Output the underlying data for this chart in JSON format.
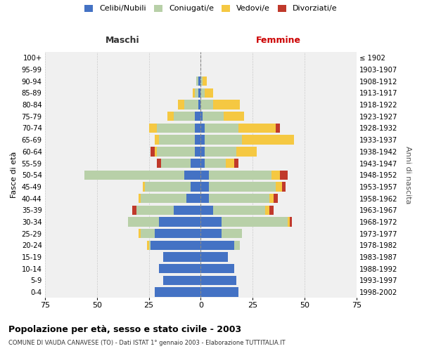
{
  "age_groups_bottom_to_top": [
    "0-4",
    "5-9",
    "10-14",
    "15-19",
    "20-24",
    "25-29",
    "30-34",
    "35-39",
    "40-44",
    "45-49",
    "50-54",
    "55-59",
    "60-64",
    "65-69",
    "70-74",
    "75-79",
    "80-84",
    "85-89",
    "90-94",
    "95-99",
    "100+"
  ],
  "birth_years_bottom_to_top": [
    "1998-2002",
    "1993-1997",
    "1988-1992",
    "1983-1987",
    "1978-1982",
    "1973-1977",
    "1968-1972",
    "1963-1967",
    "1958-1962",
    "1953-1957",
    "1948-1952",
    "1943-1947",
    "1938-1942",
    "1933-1937",
    "1928-1932",
    "1923-1927",
    "1918-1922",
    "1913-1917",
    "1908-1912",
    "1903-1907",
    "≤ 1902"
  ],
  "colors": {
    "celibe": "#4472C4",
    "coniugato": "#B8D0A8",
    "vedovo": "#F5C842",
    "divorziato": "#C0392B"
  },
  "maschi_celibe": [
    22,
    18,
    20,
    18,
    24,
    22,
    20,
    13,
    7,
    5,
    8,
    5,
    3,
    3,
    3,
    3,
    1,
    1,
    1,
    0,
    0
  ],
  "maschi_coniugato": [
    0,
    0,
    0,
    0,
    1,
    7,
    15,
    18,
    22,
    22,
    48,
    14,
    18,
    17,
    18,
    10,
    7,
    2,
    1,
    0,
    0
  ],
  "maschi_vedovo": [
    0,
    0,
    0,
    0,
    1,
    1,
    0,
    0,
    1,
    1,
    0,
    0,
    1,
    2,
    4,
    3,
    3,
    1,
    0,
    0,
    0
  ],
  "maschi_divorziato": [
    0,
    0,
    0,
    0,
    0,
    0,
    0,
    2,
    0,
    0,
    0,
    2,
    2,
    0,
    0,
    0,
    0,
    0,
    0,
    0,
    0
  ],
  "femmine_nubile": [
    18,
    17,
    16,
    13,
    16,
    10,
    10,
    6,
    4,
    4,
    4,
    2,
    2,
    2,
    2,
    1,
    0,
    0,
    0,
    0,
    0
  ],
  "femmine_coniugata": [
    0,
    0,
    0,
    0,
    3,
    10,
    32,
    25,
    29,
    32,
    30,
    10,
    15,
    18,
    16,
    10,
    6,
    2,
    1,
    0,
    0
  ],
  "femmine_vedova": [
    0,
    0,
    0,
    0,
    0,
    0,
    1,
    2,
    2,
    3,
    4,
    4,
    10,
    25,
    18,
    10,
    13,
    4,
    2,
    0,
    0
  ],
  "femmine_divorziata": [
    0,
    0,
    0,
    0,
    0,
    0,
    1,
    2,
    2,
    2,
    4,
    2,
    0,
    0,
    2,
    0,
    0,
    0,
    0,
    0,
    0
  ],
  "xlim": 75,
  "title_main": "Popolazione per età, sesso e stato civile - 2003",
  "title_sub": "COMUNE DI VAUDA CANAVESE (TO) - Dati ISTAT 1° gennaio 2003 - Elaborazione TUTTITALIA.IT",
  "ylabel_left": "Fasce di età",
  "ylabel_right": "Anni di nascita",
  "xlabel_left": "Maschi",
  "xlabel_right": "Femmine",
  "legend_labels": [
    "Celibi/Nubili",
    "Coniugati/e",
    "Vedovi/e",
    "Divorziati/e"
  ],
  "bg_color": "#FFFFFF",
  "plot_bg": "#F0F0F0",
  "grid_color": "#CCCCCC"
}
